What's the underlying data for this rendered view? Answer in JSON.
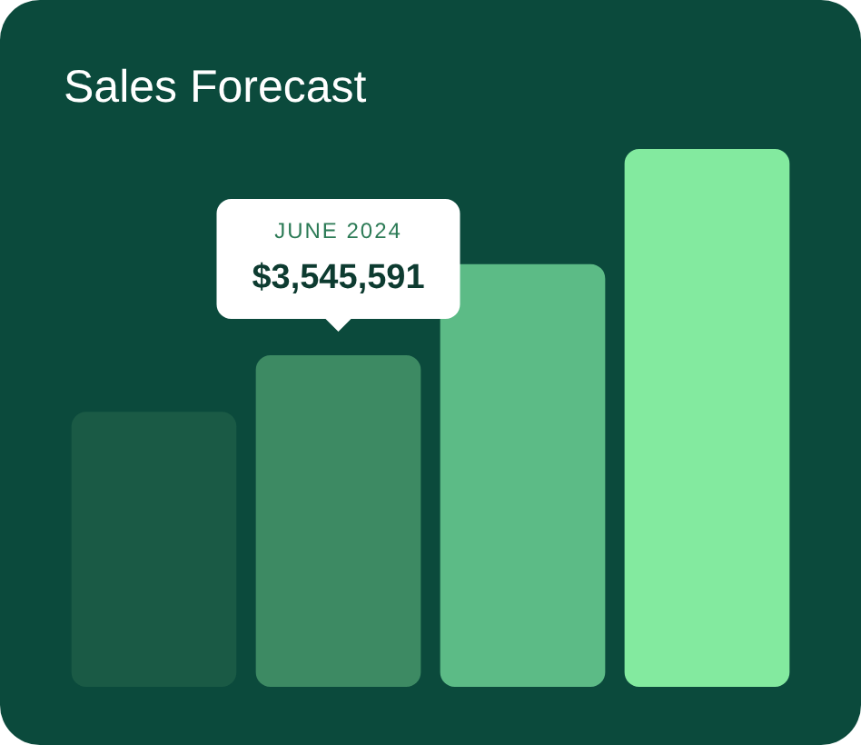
{
  "chart_data": {
    "type": "bar",
    "title": "Sales Forecast",
    "tick_labels": false,
    "categories": [
      null,
      null,
      null,
      null
    ],
    "values": [
      2940000,
      3545591,
      4520000,
      5750000
    ],
    "colors": [
      "#1a5a45",
      "#3d8a63",
      "#5cbb86",
      "#83ea9f"
    ],
    "value_labels": [
      null,
      "$3,545,591",
      null,
      null
    ],
    "annotations": [
      "JUNE 2024"
    ]
  }
}
